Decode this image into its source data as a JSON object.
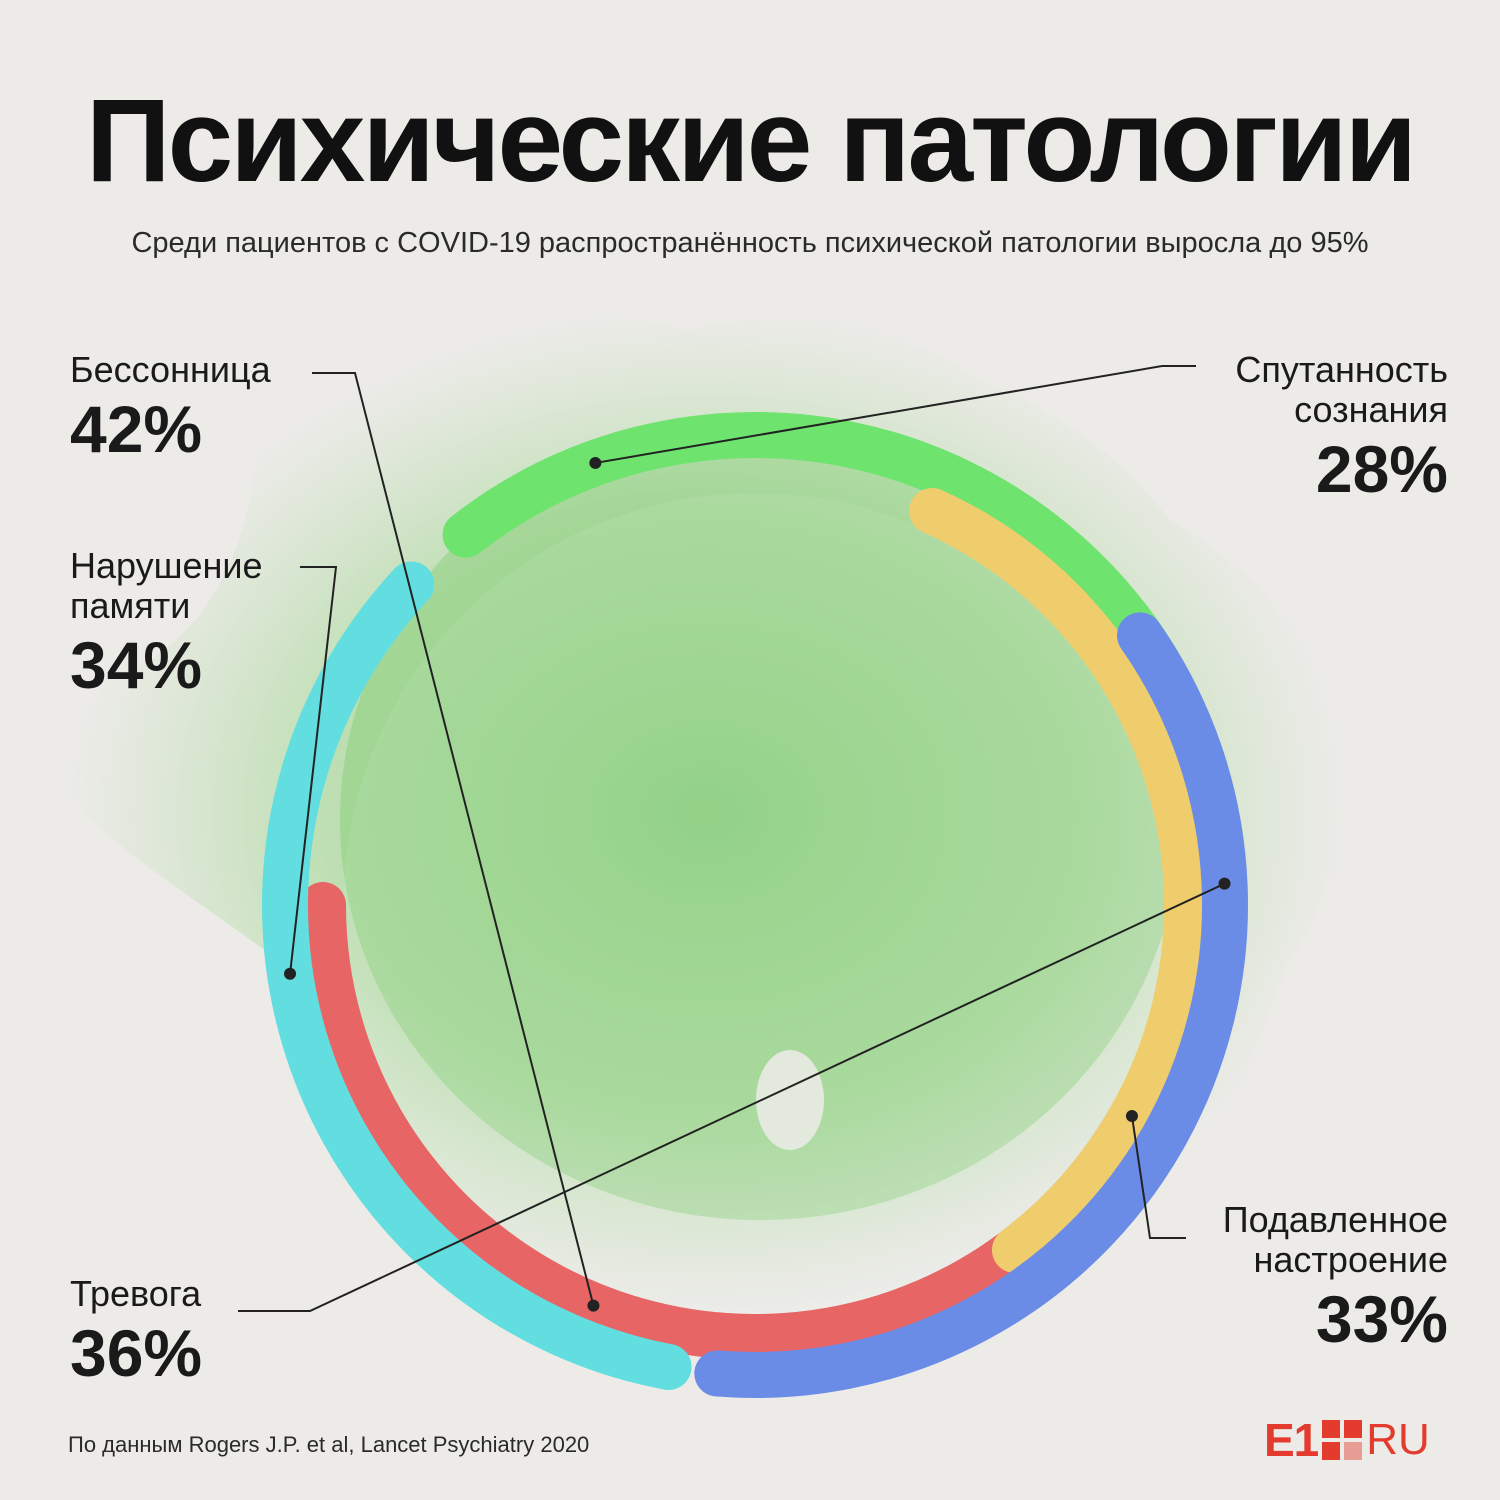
{
  "header": {
    "title": "Психические патологии",
    "subtitle": "Среди пациентов с COVID-19 распространённость психической патологии выросла до 95%"
  },
  "footer": {
    "source": "По данным Rogers J.P. et al, Lancet Psychiatry 2020",
    "logo_text": "E1",
    "logo_suffix": "RU"
  },
  "colors": {
    "background": "#ecebe8",
    "watercolor": "#5cc24a",
    "insomnia": "#e86565",
    "confusion": "#6ee36e",
    "memory": "#62dde0",
    "depression": "#f0cd6c",
    "anxiety": "#6a8ce6",
    "logo": "#e33b2e"
  },
  "chart_data": {
    "type": "pie",
    "title": "Психические патологии",
    "subtitle": "Среди пациентов с COVID-19 распространённость психической патологии выросла до 95%",
    "unit": "%",
    "series": [
      {
        "name": "Бессонница",
        "value": 42,
        "label": "Бессонница",
        "display": "42%",
        "color": "#e86565"
      },
      {
        "name": "Спутанность сознания",
        "value": 28,
        "label": "Спутанность\nсознания",
        "display": "28%",
        "color": "#6ee36e"
      },
      {
        "name": "Нарушение памяти",
        "value": 34,
        "label": "Нарушение\nпамяти",
        "display": "34%",
        "color": "#62dde0"
      },
      {
        "name": "Подавленное настроение",
        "value": 33,
        "label": "Подавленное\nнастроение",
        "display": "33%",
        "color": "#f0cd6c"
      },
      {
        "name": "Тревога",
        "value": 36,
        "label": "Тревога",
        "display": "36%",
        "color": "#6a8ce6"
      }
    ]
  }
}
